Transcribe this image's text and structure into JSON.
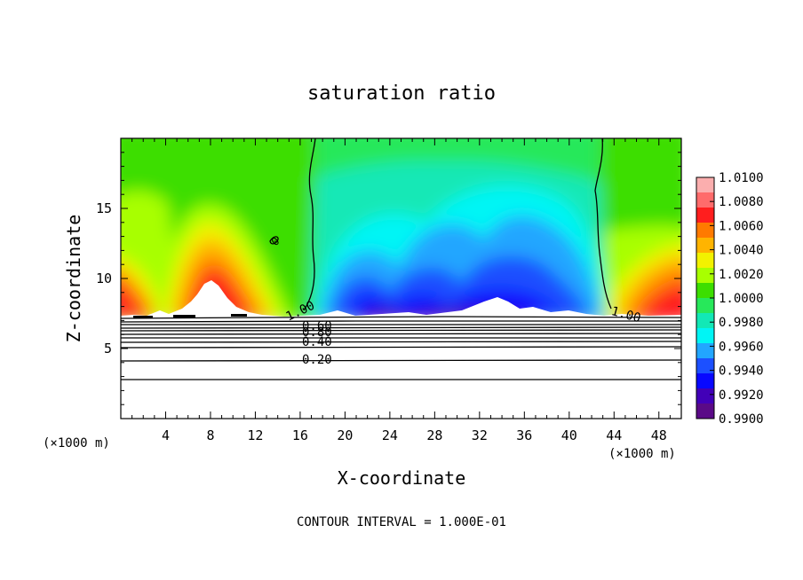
{
  "chart_data": {
    "type": "heatmap",
    "title": "saturation ratio",
    "xlabel": "X-coordinate",
    "ylabel": "Z-coordinate",
    "x_unit_left": "(×1000 m)",
    "x_unit_right": "(×1000 m)",
    "xlim": [
      0,
      50
    ],
    "ylim": [
      0,
      20
    ],
    "x_ticks": [
      4,
      8,
      12,
      16,
      20,
      24,
      28,
      32,
      36,
      40,
      44,
      48
    ],
    "y_ticks": [
      5,
      10,
      15
    ],
    "colorbar_labels": [
      "1.0100",
      "1.0080",
      "1.0060",
      "1.0040",
      "1.0020",
      "1.0000",
      "0.9980",
      "0.9960",
      "0.9940",
      "0.9920",
      "0.9900"
    ],
    "colorbar_colors": [
      "#fbaeae",
      "#ff6b6b",
      "#ff1e1e",
      "#ff7a00",
      "#ffb400",
      "#f2f200",
      "#a8ff00",
      "#3cde00",
      "#27e85a",
      "#12e8b6",
      "#00f5f5",
      "#22a6ff",
      "#1c50ff",
      "#0808ff",
      "#4200b8",
      "#5a0a87"
    ],
    "contour_labels": [
      "1.00",
      "0.80",
      "0.60",
      "0.40",
      "0.20",
      "0",
      "1.00"
    ],
    "footer": "CONTOUR INTERVAL = 1.000E-01"
  }
}
